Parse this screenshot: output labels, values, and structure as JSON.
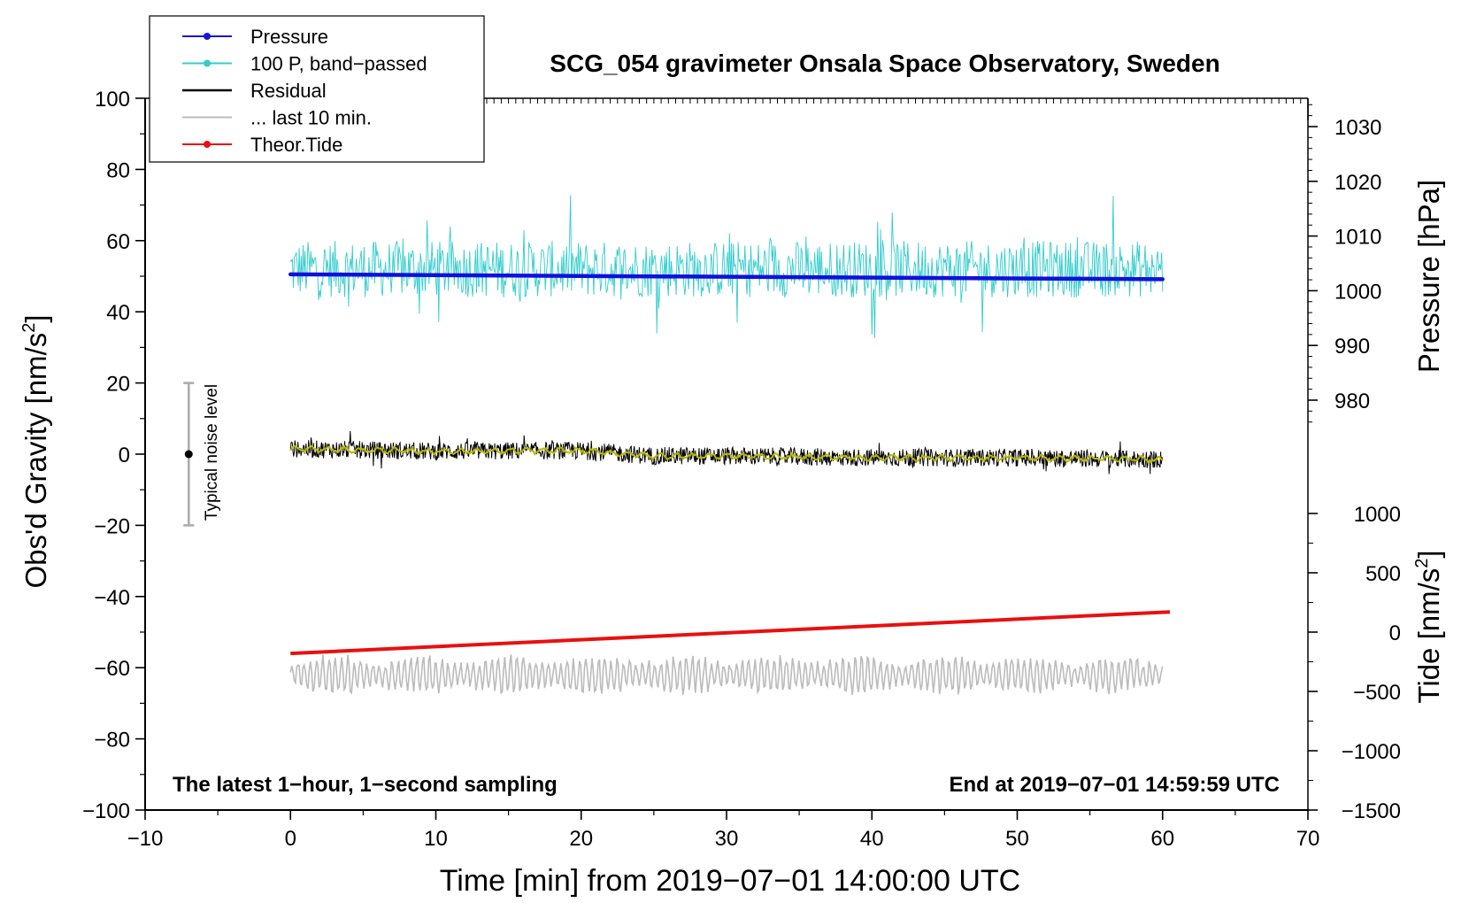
{
  "chart_data": {
    "type": "line",
    "title": "SCG_054 gravimeter Onsala Space Observatory, Sweden",
    "xlabel": "Time [min] from 2019−07−01 14:00:00 UTC",
    "ylabel_left_main": "Obs'd Gravity [nm/s",
    "ylabel_left_sup": "2",
    "ylabel_left_end": "]",
    "ylabel_right_pressure": "Pressure [hPa]",
    "ylabel_right_tide_main": "Tide [nm/s",
    "ylabel_right_tide_sup": "2",
    "ylabel_right_tide_end": "]",
    "xlim": [
      -10,
      70
    ],
    "ylim": [
      -100,
      100
    ],
    "pressure_axis_range": [
      970,
      1035
    ],
    "tide_axis_range": [
      -1500,
      1500
    ],
    "x_ticks": [
      -10,
      0,
      10,
      20,
      30,
      40,
      50,
      60,
      70
    ],
    "x_tick_labels": [
      "−10",
      "0",
      "10",
      "20",
      "30",
      "40",
      "50",
      "60",
      "70"
    ],
    "y_ticks": [
      -100,
      -80,
      -60,
      -40,
      -20,
      0,
      20,
      40,
      60,
      80,
      100
    ],
    "y_tick_labels": [
      "−100",
      "−80",
      "−60",
      "−40",
      "−20",
      "0",
      "20",
      "40",
      "60",
      "80",
      "100"
    ],
    "pressure_ticks": [
      980,
      990,
      1000,
      1010,
      1020,
      1030
    ],
    "pressure_tick_labels": [
      "980",
      "990",
      "1000",
      "1010",
      "1020",
      "1030"
    ],
    "tide_ticks": [
      -1500,
      -1000,
      -500,
      0,
      500,
      1000
    ],
    "tide_tick_labels": [
      "−1500",
      "−1000",
      "−500",
      "0",
      "500",
      "1000"
    ],
    "legend": {
      "placement": "top-left",
      "items": [
        {
          "label": "Pressure",
          "color": "#1515e0",
          "marker": true
        },
        {
          "label": "100 P, band−passed",
          "color": "#33cccc",
          "marker": true
        },
        {
          "label": "Residual",
          "color": "#000000",
          "marker": false
        },
        {
          "label": "... last 10 min.",
          "color": "#bbbbbb",
          "marker": false
        },
        {
          "label": "Theor.Tide",
          "color": "#e81010",
          "marker": true
        }
      ]
    },
    "annotations": {
      "bottom_left": "The latest 1−hour, 1−second sampling",
      "bottom_right": "End at 2019−07−01 14:59:59 UTC",
      "noise_label": "Typical noise level"
    },
    "noise_bar": {
      "x": -7,
      "center": 0,
      "low": -20,
      "high": 20
    },
    "series": [
      {
        "name": "Pressure",
        "axis": "pressure",
        "color": "#1010dd",
        "x": [
          0,
          60
        ],
        "values": [
          1003.0,
          1002.1
        ]
      },
      {
        "name": "100 P, band−passed",
        "axis": "gravity",
        "color": "#33cccc",
        "x_range": [
          0,
          60
        ],
        "center": 52,
        "amplitude": 8
      },
      {
        "name": "Residual",
        "axis": "gravity",
        "color": "#000000",
        "x_range": [
          0,
          60
        ],
        "x": [
          0,
          10,
          20,
          25,
          30,
          40,
          50,
          60
        ],
        "values": [
          1.5,
          0.8,
          1.0,
          -0.5,
          -0.5,
          -1.0,
          -1.0,
          -1.5
        ],
        "amplitude": 2.5
      },
      {
        "name": "Residual smoothed",
        "axis": "gravity",
        "color": "#b8b800",
        "x": [
          0,
          10,
          20,
          25,
          30,
          40,
          50,
          60
        ],
        "values": [
          1.5,
          0.8,
          1.0,
          -0.5,
          -0.5,
          -1.0,
          -1.0,
          -1.5
        ]
      },
      {
        "name": "... last 10 min.",
        "axis": "gravity",
        "color": "#bbbbbb",
        "x_range": [
          0,
          60
        ],
        "center": -62,
        "amplitude": 5
      },
      {
        "name": "Theor.Tide",
        "axis": "tide",
        "color": "#e81010",
        "x": [
          0,
          60.5
        ],
        "values": [
          -180,
          170
        ]
      }
    ],
    "colors": {
      "pressure": "#1010dd",
      "bandpassed": "#33cccc",
      "residual": "#000000",
      "smoothed": "#b8b800",
      "last10": "#bbbbbb",
      "tide": "#e81010",
      "noise_bar": "#aaaaaa"
    }
  }
}
